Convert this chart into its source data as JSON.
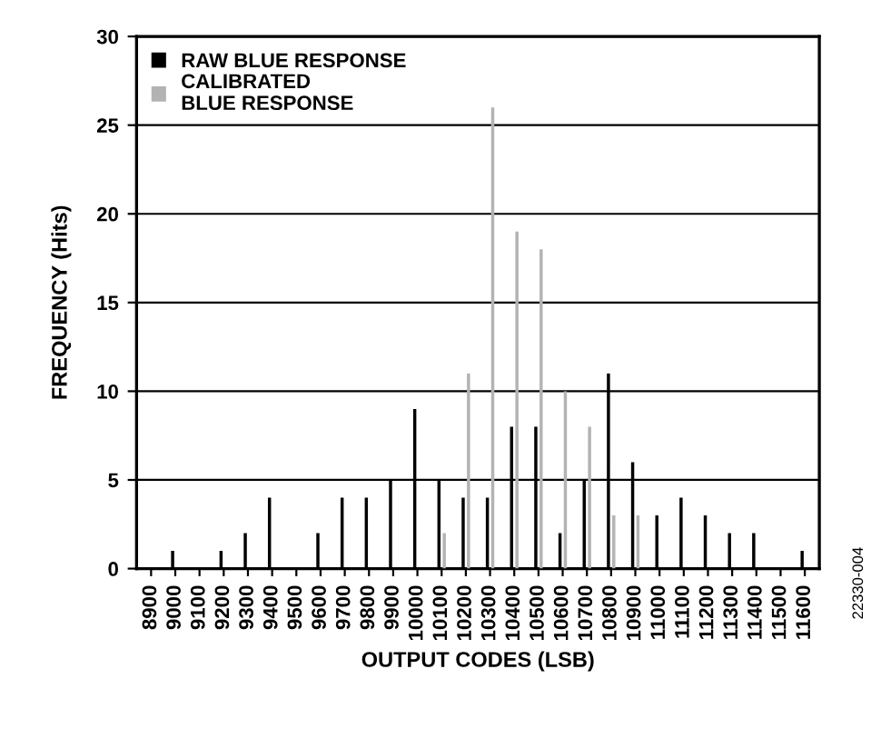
{
  "chart_data": {
    "type": "bar",
    "xlabel": "OUTPUT CODES (LSB)",
    "ylabel": "FREQUENCY (Hits)",
    "categories": [
      "8900",
      "9000",
      "9100",
      "9200",
      "9300",
      "9400",
      "9500",
      "9600",
      "9700",
      "9800",
      "9900",
      "10000",
      "10100",
      "10200",
      "10300",
      "10400",
      "10500",
      "10600",
      "10700",
      "10800",
      "10900",
      "11000",
      "11100",
      "11200",
      "11300",
      "11400",
      "11500",
      "11600"
    ],
    "series": [
      {
        "name": "RAW BLUE RESPONSE",
        "color": "#000000",
        "values": [
          0,
          1,
          0,
          1,
          2,
          4,
          0,
          2,
          4,
          4,
          5,
          9,
          5,
          4,
          4,
          8,
          8,
          2,
          5,
          11,
          6,
          3,
          4,
          3,
          2,
          2,
          0,
          1
        ]
      },
      {
        "name": "CALIBRATED\nBLUE RESPONSE",
        "color": "#b3b3b3",
        "values": [
          0,
          0,
          0,
          0,
          0,
          0,
          0,
          0,
          0,
          0,
          0,
          0,
          2,
          11,
          26,
          19,
          18,
          10,
          8,
          3,
          3,
          0,
          0,
          0,
          0,
          0,
          0,
          0
        ]
      }
    ],
    "ylim": [
      0,
      30
    ],
    "yticks": [
      0,
      5,
      10,
      15,
      20,
      25,
      30
    ],
    "grid": "y",
    "legend": "top left",
    "annotations": [
      "22330-004"
    ]
  }
}
